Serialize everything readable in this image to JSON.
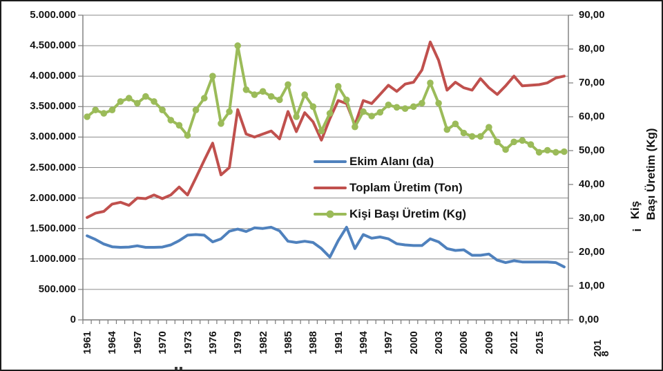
{
  "figure": {
    "background": "#ffffff",
    "border_color": "#1c1c1c",
    "gridline_color": "#8a8a8a",
    "axis_line_color": "#7a7a7a"
  },
  "legend": {
    "items": [
      {
        "label": "Ekim Alanı (da)",
        "color": "#4f81bd",
        "marker": "none"
      },
      {
        "label": "Toplam Üretim (Ton)",
        "color": "#c0504d",
        "marker": "none"
      },
      {
        "label": "Kişi Başı Üretim (Kg)",
        "color": "#9bbb59",
        "marker": "circle"
      }
    ]
  },
  "axes": {
    "left": {
      "tick_labels": [
        "5.000.000",
        "4.500.000",
        "4.000.000",
        "3.500.000",
        "3.000.000",
        "2.500.000",
        "2.000.000",
        "1.500.000",
        "1.000.000",
        "500.000",
        "0"
      ]
    },
    "right": {
      "tick_labels": [
        "90,00",
        "80,00",
        "70,00",
        "60,00",
        "50,00",
        "40,00",
        "30,00",
        "20,00",
        "10,00",
        "0,00"
      ],
      "title_full": "Kişi Başı Üretim (Kg)",
      "title_lines": [
        "Kiş",
        "i",
        "Başı Üretim (Kg)"
      ]
    },
    "x": {
      "tick_labels": [
        "1961",
        "1964",
        "1967",
        "1970",
        "1973",
        "1976",
        "1979",
        "1982",
        "1985",
        "1988",
        "1991",
        "1994",
        "1997",
        "2000",
        "2003",
        "2006",
        "2009",
        "2012",
        "2015"
      ],
      "far_label": "2018",
      "far_label_lines": [
        "201",
        "8"
      ]
    }
  },
  "chart_data": {
    "type": "line",
    "x": [
      1961,
      1962,
      1963,
      1964,
      1965,
      1966,
      1967,
      1968,
      1969,
      1970,
      1971,
      1972,
      1973,
      1974,
      1975,
      1976,
      1977,
      1978,
      1979,
      1980,
      1981,
      1982,
      1983,
      1984,
      1985,
      1986,
      1987,
      1988,
      1989,
      1990,
      1991,
      1992,
      1993,
      1994,
      1995,
      1996,
      1997,
      1998,
      1999,
      2000,
      2001,
      2002,
      2003,
      2004,
      2005,
      2006,
      2007,
      2008,
      2009,
      2010,
      2011,
      2012,
      2013,
      2014,
      2015,
      2016,
      2017,
      2018
    ],
    "left_axis_range": [
      0,
      5000000
    ],
    "right_axis_range": [
      0,
      90
    ],
    "grid": true,
    "legend_position": "center-overlay",
    "series": [
      {
        "name": "Ekim Alanı (da)",
        "axis": "left",
        "color": "#4f81bd",
        "marker": "none",
        "values": [
          1380000,
          1320000,
          1245000,
          1200000,
          1190000,
          1195000,
          1215000,
          1190000,
          1190000,
          1195000,
          1230000,
          1300000,
          1390000,
          1400000,
          1390000,
          1280000,
          1330000,
          1455000,
          1490000,
          1450000,
          1510000,
          1500000,
          1520000,
          1460000,
          1290000,
          1270000,
          1290000,
          1270000,
          1170000,
          1030000,
          1300000,
          1520000,
          1170000,
          1400000,
          1340000,
          1360000,
          1330000,
          1250000,
          1230000,
          1220000,
          1220000,
          1330000,
          1280000,
          1170000,
          1140000,
          1150000,
          1060000,
          1060000,
          1080000,
          980000,
          940000,
          970000,
          950000,
          950000,
          950000,
          950000,
          940000,
          870000
        ]
      },
      {
        "name": "Toplam Üretim (Ton)",
        "axis": "left",
        "color": "#c0504d",
        "marker": "none",
        "values": [
          1680000,
          1750000,
          1780000,
          1900000,
          1930000,
          1880000,
          2000000,
          1990000,
          2050000,
          1990000,
          2050000,
          2180000,
          2050000,
          2330000,
          2620000,
          2900000,
          2380000,
          2500000,
          3450000,
          3050000,
          3000000,
          3050000,
          3100000,
          2970000,
          3420000,
          3090000,
          3400000,
          3250000,
          2950000,
          3300000,
          3600000,
          3550000,
          3200000,
          3600000,
          3550000,
          3700000,
          3850000,
          3750000,
          3870000,
          3900000,
          4100000,
          4560000,
          4260000,
          3770000,
          3900000,
          3810000,
          3770000,
          3960000,
          3810000,
          3700000,
          3840000,
          4000000,
          3840000,
          3850000,
          3860000,
          3890000,
          3970000,
          4000000
        ]
      },
      {
        "name": "Kişi Başı Üretim (Kg)",
        "axis": "right",
        "color": "#9bbb59",
        "marker": "circle",
        "values": [
          60.0,
          62.0,
          61.0,
          62.0,
          64.5,
          65.5,
          64.0,
          66.0,
          64.5,
          62.0,
          59.0,
          57.5,
          54.5,
          62.0,
          65.5,
          72.0,
          58.0,
          61.5,
          81.0,
          68.0,
          66.5,
          67.5,
          66.0,
          65.0,
          69.5,
          60.0,
          66.5,
          63.0,
          55.8,
          61.0,
          69.0,
          65.0,
          57.0,
          61.5,
          60.2,
          61.3,
          63.5,
          62.8,
          62.4,
          63.0,
          64.0,
          70.0,
          64.0,
          56.2,
          57.9,
          55.2,
          54.2,
          54.2,
          56.9,
          52.6,
          50.3,
          52.6,
          53.0,
          51.8,
          49.5,
          50.1,
          49.5,
          49.7
        ]
      }
    ]
  }
}
